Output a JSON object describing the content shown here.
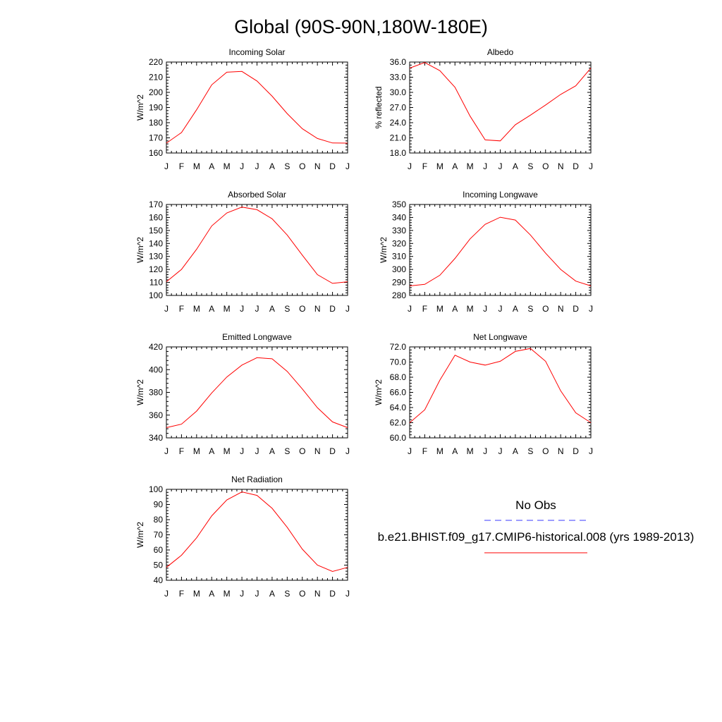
{
  "page_title": "Global (90S-90N,180W-180E)",
  "months": [
    "J",
    "F",
    "M",
    "A",
    "M",
    "J",
    "J",
    "A",
    "S",
    "O",
    "N",
    "D",
    "J"
  ],
  "legend": {
    "obs_label": "No Obs",
    "model_label": "b.e21.BHIST.f09_g17.CMIP6-historical.008 (yrs 1989-2013)",
    "obs_color": "#3b3bff",
    "model_color": "#ff0000"
  },
  "chart_data": [
    {
      "id": "incoming-solar",
      "type": "line",
      "title": "Incoming Solar",
      "ylabel": "W/m^2",
      "ylim": [
        160,
        220
      ],
      "yticks": [
        "160",
        "170",
        "180",
        "190",
        "200",
        "210",
        "220"
      ],
      "categories": [
        "J",
        "F",
        "M",
        "A",
        "M",
        "J",
        "J",
        "A",
        "S",
        "O",
        "N",
        "D",
        "J"
      ],
      "series": [
        {
          "name": "model",
          "values": [
            166.5,
            173.5,
            188.5,
            205,
            213.3,
            213.8,
            207.5,
            197.5,
            186,
            176,
            169.6,
            166.6,
            166.5
          ]
        }
      ]
    },
    {
      "id": "albedo",
      "type": "line",
      "title": "Albedo",
      "ylabel": "% reflected",
      "ylim": [
        18.0,
        36.0
      ],
      "yticks": [
        "18.0",
        "21.0",
        "24.0",
        "27.0",
        "30.0",
        "33.0",
        "36.0"
      ],
      "categories": [
        "J",
        "F",
        "M",
        "A",
        "M",
        "J",
        "J",
        "A",
        "S",
        "O",
        "N",
        "D",
        "J"
      ],
      "series": [
        {
          "name": "model",
          "values": [
            34.8,
            35.9,
            34.3,
            31.0,
            25.3,
            20.6,
            20.4,
            23.6,
            25.5,
            27.5,
            29.6,
            31.3,
            34.8
          ]
        }
      ]
    },
    {
      "id": "absorbed-solar",
      "type": "line",
      "title": "Absorbed Solar",
      "ylabel": "W/m^2",
      "ylim": [
        100,
        170
      ],
      "yticks": [
        "100",
        "110",
        "120",
        "130",
        "140",
        "150",
        "160",
        "170"
      ],
      "categories": [
        "J",
        "F",
        "M",
        "A",
        "M",
        "J",
        "J",
        "A",
        "S",
        "O",
        "N",
        "D",
        "J"
      ],
      "series": [
        {
          "name": "model",
          "values": [
            110.5,
            120,
            135.5,
            153.5,
            163.5,
            168,
            166,
            159,
            146.5,
            131,
            116,
            109.3,
            110.5
          ]
        }
      ]
    },
    {
      "id": "incoming-longwave",
      "type": "line",
      "title": "Incoming Longwave",
      "ylabel": "W/m^2",
      "ylim": [
        280,
        350
      ],
      "yticks": [
        "280",
        "290",
        "300",
        "310",
        "320",
        "330",
        "340",
        "350"
      ],
      "categories": [
        "J",
        "F",
        "M",
        "A",
        "M",
        "J",
        "J",
        "A",
        "S",
        "O",
        "N",
        "D",
        "J"
      ],
      "series": [
        {
          "name": "model",
          "values": [
            287.3,
            288.5,
            295.5,
            308.5,
            323.5,
            334.7,
            340.2,
            338,
            326.5,
            312.5,
            300,
            291,
            287.3
          ]
        }
      ]
    },
    {
      "id": "emitted-longwave",
      "type": "line",
      "title": "Emitted Longwave",
      "ylabel": "W/m^2",
      "ylim": [
        340,
        420
      ],
      "yticks": [
        "340",
        "360",
        "380",
        "400",
        "420"
      ],
      "categories": [
        "J",
        "F",
        "M",
        "A",
        "M",
        "J",
        "J",
        "A",
        "S",
        "O",
        "N",
        "D",
        "J"
      ],
      "series": [
        {
          "name": "model",
          "values": [
            349,
            352,
            363.5,
            379.5,
            393.5,
            404,
            410.5,
            409.5,
            398.5,
            383,
            366.5,
            354,
            349
          ]
        }
      ]
    },
    {
      "id": "net-longwave",
      "type": "line",
      "title": "Net Longwave",
      "ylabel": "W/m^2",
      "ylim": [
        60.0,
        72.0
      ],
      "yticks": [
        "60.0",
        "62.0",
        "64.0",
        "66.0",
        "68.0",
        "70.0",
        "72.0"
      ],
      "categories": [
        "J",
        "F",
        "M",
        "A",
        "M",
        "J",
        "J",
        "A",
        "S",
        "O",
        "N",
        "D",
        "J"
      ],
      "series": [
        {
          "name": "model",
          "values": [
            62.0,
            63.7,
            67.6,
            70.9,
            70.0,
            69.6,
            70.1,
            71.4,
            71.8,
            70.1,
            66.2,
            63.3,
            62.0
          ]
        }
      ]
    },
    {
      "id": "net-radiation",
      "type": "line",
      "title": "Net Radiation",
      "ylabel": "W/m^2",
      "ylim": [
        40,
        100
      ],
      "yticks": [
        "40",
        "50",
        "60",
        "70",
        "80",
        "90",
        "100"
      ],
      "categories": [
        "J",
        "F",
        "M",
        "A",
        "M",
        "J",
        "J",
        "A",
        "S",
        "O",
        "N",
        "D",
        "J"
      ],
      "series": [
        {
          "name": "model",
          "values": [
            48.5,
            56.5,
            68,
            82.5,
            93,
            98.3,
            96,
            87.5,
            75,
            60.5,
            50,
            45.8,
            48.5
          ]
        }
      ]
    }
  ]
}
